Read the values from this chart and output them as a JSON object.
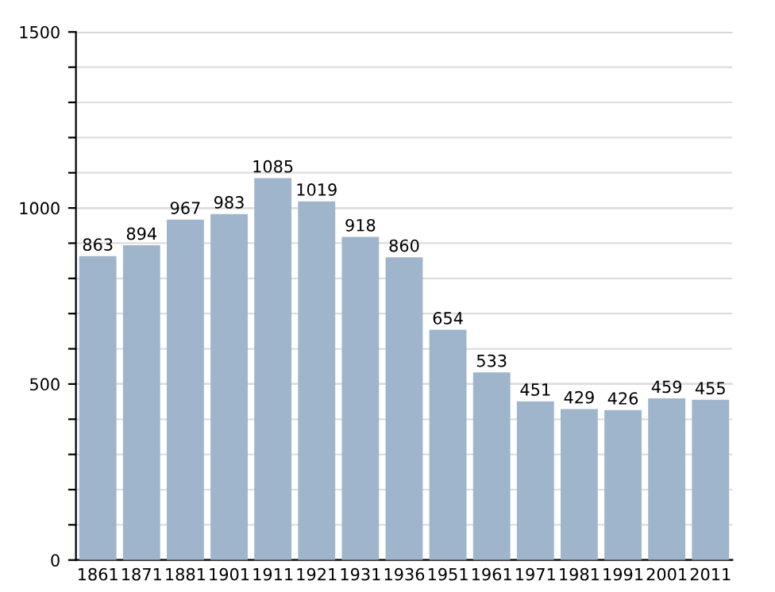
{
  "chart_data": {
    "type": "bar",
    "categories": [
      "1861",
      "1871",
      "1881",
      "1901",
      "1911",
      "1921",
      "1931",
      "1936",
      "1951",
      "1961",
      "1971",
      "1981",
      "1991",
      "2001",
      "2011"
    ],
    "values": [
      863,
      894,
      967,
      983,
      1085,
      1019,
      918,
      860,
      654,
      533,
      451,
      429,
      426,
      459,
      455
    ],
    "color": "#9fb5cc",
    "ylim": [
      0,
      1500
    ],
    "yticks": [
      0,
      {
        "value": 100,
        "label": null
      },
      {
        "value": 200,
        "label": null
      },
      {
        "value": 300,
        "label": null
      },
      {
        "value": 400,
        "label": null
      },
      500,
      {
        "value": 600,
        "label": null
      },
      {
        "value": 700,
        "label": null
      },
      {
        "value": 800,
        "label": null
      },
      {
        "value": 900,
        "label": null
      },
      1000,
      {
        "value": 1100,
        "label": null
      },
      {
        "value": 1200,
        "label": null
      },
      {
        "value": 1300,
        "label": null
      },
      {
        "value": 1400,
        "label": null
      },
      1500
    ],
    "grid": "y",
    "data_labels": true
  }
}
